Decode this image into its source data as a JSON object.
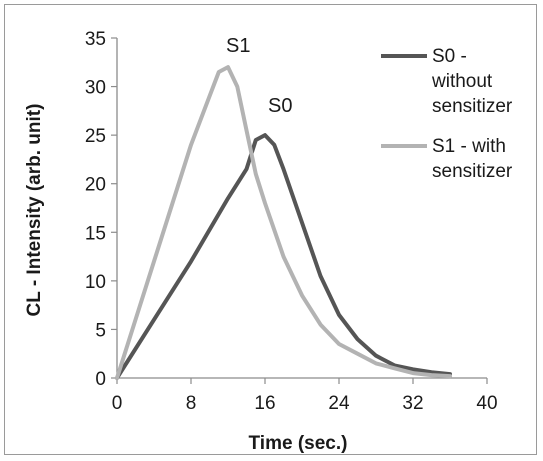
{
  "chart_data": {
    "type": "line",
    "title": "",
    "xlabel": "Time (sec.)",
    "ylabel": "CL - Intensity (arb. unit)",
    "xlim": [
      0,
      40
    ],
    "ylim": [
      0,
      35
    ],
    "x_ticks": [
      "0",
      "8",
      "16",
      "24",
      "32",
      "40"
    ],
    "y_ticks": [
      "0",
      "5",
      "10",
      "15",
      "20",
      "25",
      "30",
      "35"
    ],
    "grid": false,
    "legend_position": "right",
    "series": [
      {
        "name": "S0 - without sensitizer",
        "legend_lines": [
          "S0 -",
          "without",
          "sensitizer"
        ],
        "annotation": "S0",
        "color": "#555555",
        "x": [
          0,
          4,
          8,
          12,
          14,
          15,
          16,
          17,
          18,
          20,
          22,
          24,
          26,
          28,
          30,
          32,
          34,
          36
        ],
        "y": [
          0,
          6,
          12,
          18.5,
          21.5,
          24.5,
          25,
          24,
          21.5,
          16,
          10.5,
          6.5,
          4,
          2.3,
          1.3,
          0.9,
          0.6,
          0.4
        ]
      },
      {
        "name": "S1 - with sensitizer",
        "legend_lines": [
          "S1 - with",
          "sensitizer"
        ],
        "annotation": "S1",
        "color": "#b3b3b3",
        "x": [
          0,
          2,
          4,
          6,
          8,
          10,
          11,
          12,
          13,
          14,
          15,
          16,
          18,
          20,
          22,
          24,
          26,
          28,
          30,
          32,
          34,
          36
        ],
        "y": [
          0,
          6,
          12,
          18,
          24,
          29,
          31.5,
          32,
          30,
          25.5,
          21,
          18,
          12.5,
          8.5,
          5.5,
          3.5,
          2.5,
          1.5,
          1,
          0.5,
          0.3,
          0.2
        ]
      }
    ]
  }
}
